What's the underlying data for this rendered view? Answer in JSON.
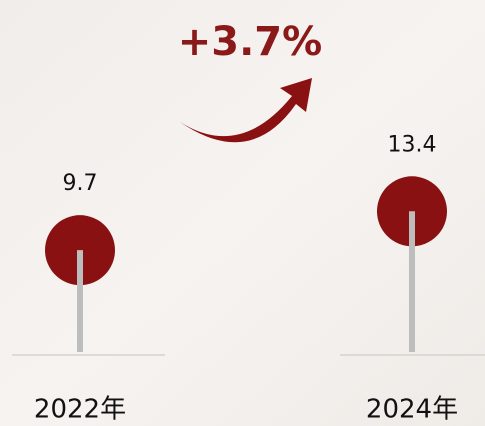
{
  "chart_data": {
    "type": "lollipop",
    "categories": [
      "2022年",
      "2024年"
    ],
    "values": [
      9.7,
      13.4
    ],
    "color": "#8a1111",
    "annotation": "+3.7%"
  }
}
